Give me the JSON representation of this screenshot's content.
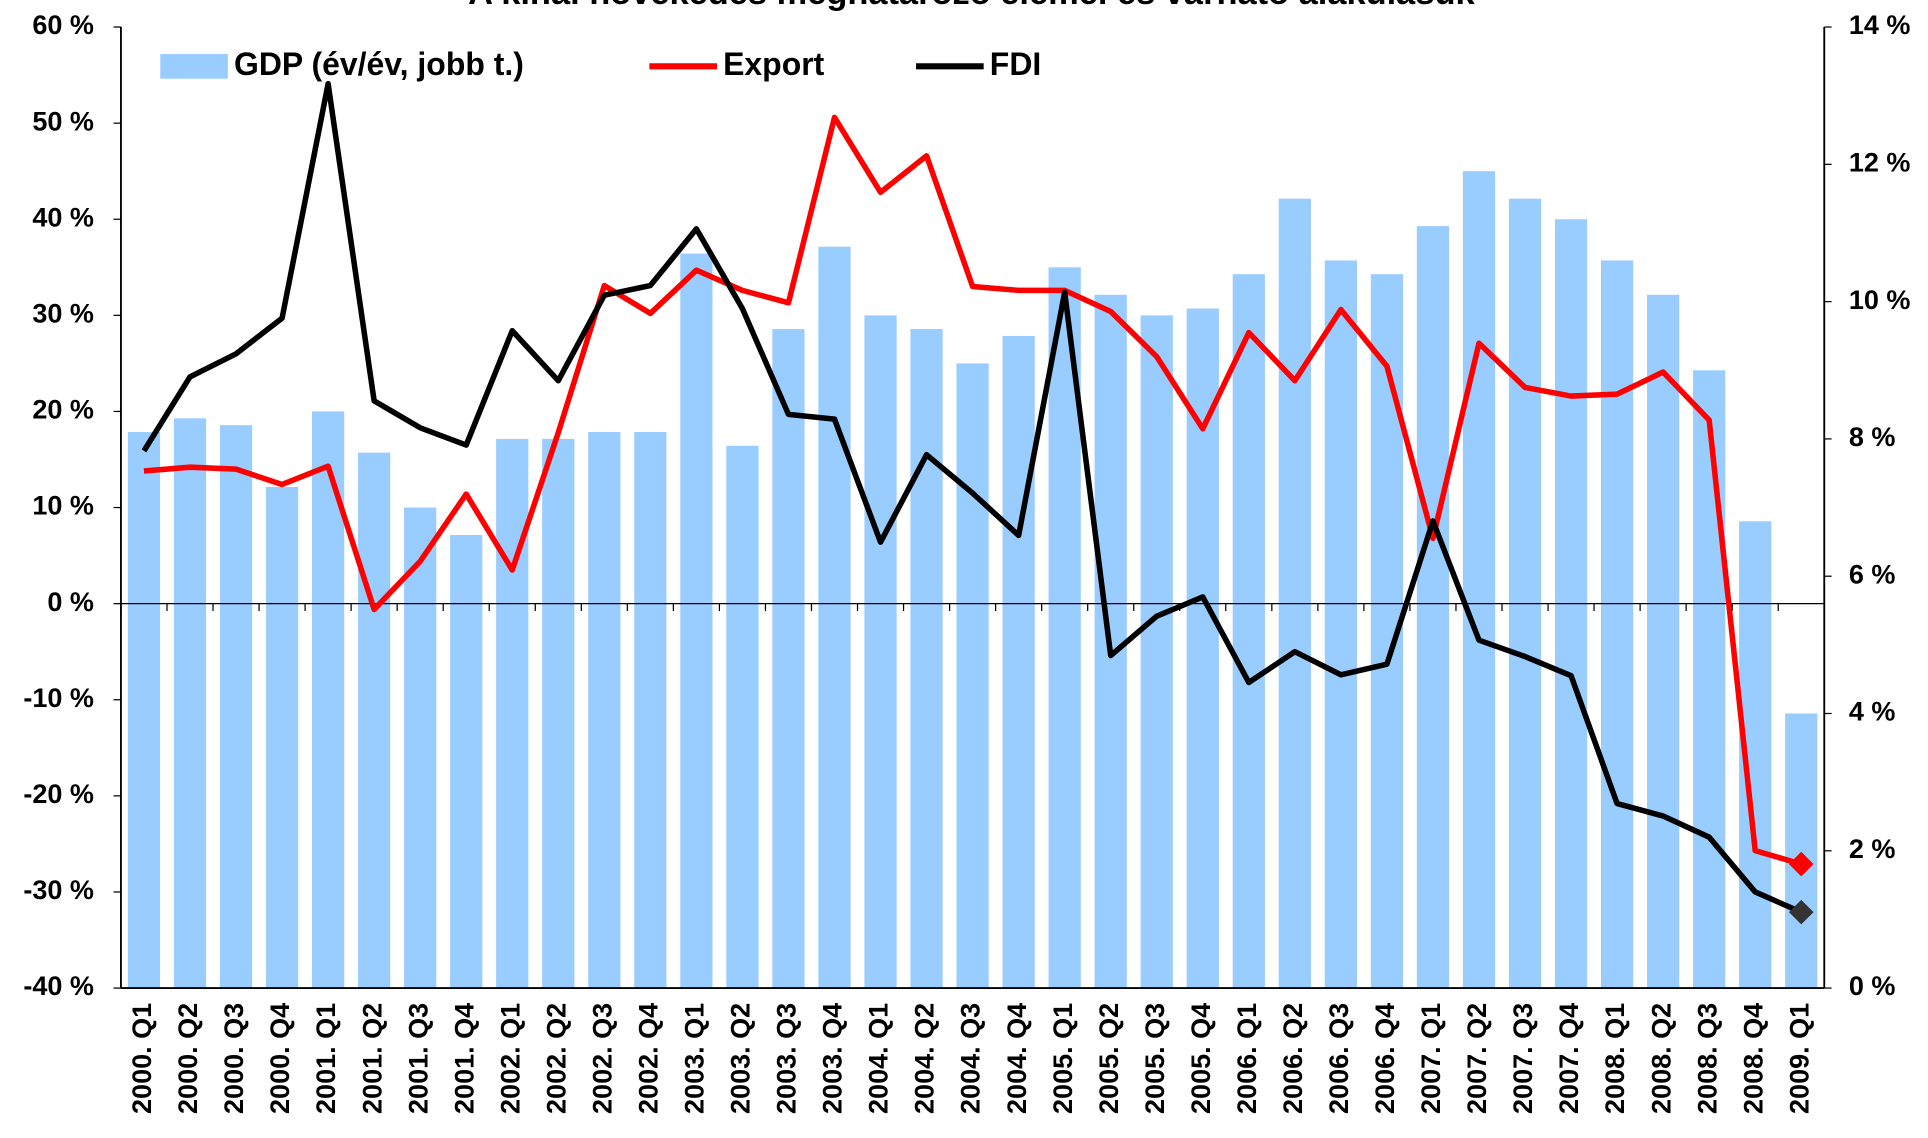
{
  "chart_data": {
    "type": "bar",
    "title": "A kínai növekedés meghatározó elemei és várható alakulásuk",
    "categories": [
      "2000. Q1",
      "2000. Q2",
      "2000. Q3",
      "2000. Q4",
      "2001. Q1",
      "2001. Q2",
      "2001. Q3",
      "2001. Q4",
      "2002. Q1",
      "2002. Q2",
      "2002. Q3",
      "2002. Q4",
      "2003. Q1",
      "2003. Q2",
      "2003. Q3",
      "2003. Q4",
      "2004. Q1",
      "2004. Q2",
      "2004. Q3",
      "2004. Q4",
      "2005. Q1",
      "2005. Q2",
      "2005. Q3",
      "2005. Q4",
      "2006. Q1",
      "2006. Q2",
      "2006. Q3",
      "2006. Q4",
      "2007. Q1",
      "2007. Q2",
      "2007. Q3",
      "2007. Q4",
      "2008. Q1",
      "2008. Q2",
      "2008. Q3",
      "2008. Q4",
      "2009. Q1"
    ],
    "series": [
      {
        "name": "GDP (év/év, jobb t.)",
        "type": "bar",
        "axis": "y2",
        "color": "#99ccff",
        "values": [
          8.1,
          8.3,
          8.2,
          7.3,
          8.4,
          7.8,
          7.0,
          6.6,
          8.0,
          8.0,
          8.1,
          8.1,
          10.7,
          7.9,
          9.6,
          10.8,
          9.8,
          9.6,
          9.1,
          9.5,
          10.5,
          10.1,
          9.8,
          9.9,
          10.4,
          11.5,
          10.6,
          10.4,
          11.1,
          11.9,
          11.5,
          11.2,
          10.6,
          10.1,
          9.0,
          6.8,
          4.0
        ]
      },
      {
        "name": "Export",
        "type": "line",
        "color": "#ff0000",
        "values": [
          13.8,
          14.2,
          14.0,
          12.4,
          14.3,
          -0.6,
          4.4,
          11.4,
          3.5,
          17.8,
          33.1,
          30.2,
          34.7,
          32.6,
          31.3,
          50.6,
          42.8,
          46.6,
          33.0,
          32.6,
          32.6,
          30.4,
          25.7,
          18.2,
          28.2,
          23.2,
          30.6,
          24.7,
          6.8,
          27.1,
          22.5,
          21.6,
          21.8,
          24.1,
          19.1,
          -25.7,
          -27.1
        ]
      },
      {
        "name": "FDI",
        "type": "line",
        "color": "#000000",
        "values": [
          15.9,
          23.6,
          26.0,
          29.7,
          54.1,
          21.1,
          18.3,
          16.5,
          28.4,
          23.2,
          32.1,
          33.1,
          39.0,
          30.7,
          19.7,
          19.2,
          6.4,
          15.5,
          11.5,
          7.1,
          32.4,
          -5.4,
          -1.3,
          0.7,
          -8.2,
          -5.0,
          -7.4,
          -6.3,
          8.6,
          -3.8,
          -5.5,
          -7.5,
          -20.8,
          -22.1,
          -24.3,
          -30.0,
          -32.1
        ]
      }
    ],
    "ylim": [
      -40,
      60
    ],
    "yticks": [
      {
        "value": -40,
        "label": "-40 %"
      },
      {
        "value": -30,
        "label": "-30 %"
      },
      {
        "value": -20,
        "label": "-20 %"
      },
      {
        "value": -10,
        "label": "-10 %"
      },
      {
        "value": 0,
        "label": "0 %"
      },
      {
        "value": 10,
        "label": "10 %"
      },
      {
        "value": 20,
        "label": "20 %"
      },
      {
        "value": 30,
        "label": "30 %"
      },
      {
        "value": 40,
        "label": "40 %"
      },
      {
        "value": 50,
        "label": "50 %"
      },
      {
        "value": 60,
        "label": "60 %"
      }
    ],
    "y2lim": [
      0,
      14
    ],
    "y2ticks": [
      {
        "value": 0,
        "label": "0 %"
      },
      {
        "value": 2,
        "label": "2 %"
      },
      {
        "value": 4,
        "label": "4 %"
      },
      {
        "value": 6,
        "label": "6 %"
      },
      {
        "value": 8,
        "label": "8 %"
      },
      {
        "value": 10,
        "label": "10 %"
      },
      {
        "value": 12,
        "label": "12 %"
      },
      {
        "value": 14,
        "label": "14 %"
      }
    ],
    "legend": "top"
  }
}
